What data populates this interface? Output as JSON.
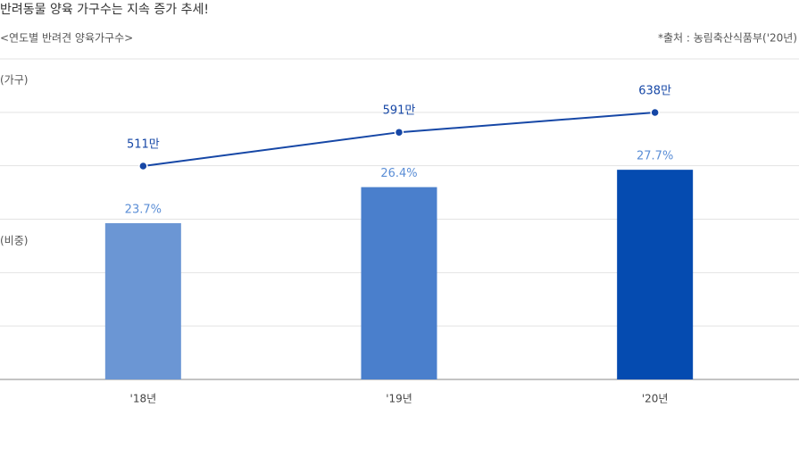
{
  "chart_data": {
    "type": "combo",
    "title": "반려동물 양육 가구수는 지속 증가 추세!",
    "subtitle": "<연도별 반려견 양육가구수>",
    "source": "*출처 : 농림축산식품부('20년)",
    "y2label": "(가구)",
    "ylabel": "(비중)",
    "categories": [
      "'18년",
      "'19년",
      "'20년"
    ],
    "series": [
      {
        "type": "bar",
        "colors": [
          "#6b96d4",
          "#4a7fcc",
          "#054bb0"
        ],
        "values": [
          23.7,
          26.4,
          27.7
        ],
        "value_labels": [
          "23.7%",
          "26.4%",
          "27.7%"
        ],
        "label_color": "#5b8ed6"
      },
      {
        "type": "line",
        "axis": "y2",
        "color": "#1647a6",
        "values": [
          511,
          591,
          638
        ],
        "value_labels": [
          "511만",
          "591만",
          "638만"
        ]
      }
    ],
    "ylim": [
      12,
      36
    ],
    "y2lim": [
      5,
      765
    ]
  }
}
